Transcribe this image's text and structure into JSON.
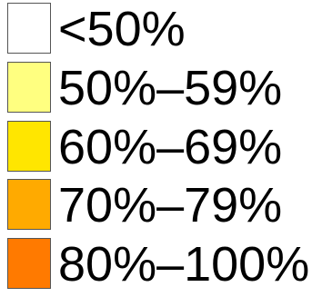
{
  "legend": {
    "items": [
      {
        "label": "<50%",
        "color": "#ffffff"
      },
      {
        "label": "50%–59%",
        "color": "#ffff80"
      },
      {
        "label": "60%–69%",
        "color": "#ffe600"
      },
      {
        "label": "70%–79%",
        "color": "#ffaa00"
      },
      {
        "label": "80%–100%",
        "color": "#ff7a00"
      }
    ]
  }
}
